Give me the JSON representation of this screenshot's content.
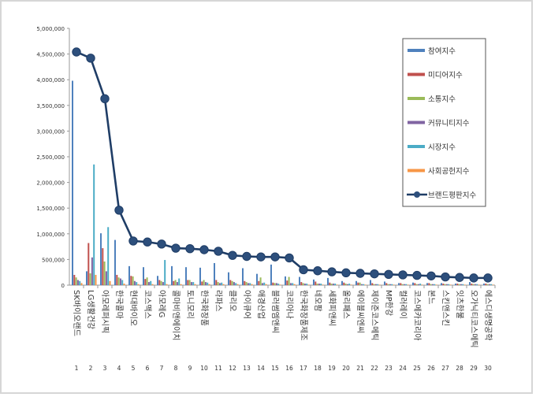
{
  "chart_data": {
    "type": "bar",
    "title": "",
    "xlabel": "",
    "ylabel": "",
    "ylim": [
      0,
      5000000
    ],
    "y_ticks": [
      "0",
      "500,000",
      "1,000,000",
      "1,500,000",
      "2,000,000",
      "2,500,000",
      "3,000,000",
      "3,500,000",
      "4,000,000",
      "4,500,000",
      "5,000,000"
    ],
    "grid": false,
    "legend_position": "top-right",
    "categories": [
      "SK바이오랜드",
      "LG생활건강",
      "아모레퍼시픽",
      "한국콜마",
      "현대바이오",
      "코스맥스",
      "아모레G",
      "콜마비앤에이치",
      "토니모리",
      "한국화장품",
      "라파스",
      "클리오",
      "아이큐어",
      "애경산업",
      "블러썸엠앤씨",
      "코리아나",
      "한국화장품제조",
      "네오팜",
      "세화피앤씨",
      "올리패스",
      "에이블씨엔씨",
      "제이준코스메틱",
      "MP한강",
      "컬러레이",
      "코스메카코리아",
      "본느",
      "스킨앤스킨",
      "잇츠한불",
      "오가닉티코스메틱",
      "에스디생명공학"
    ],
    "ranks": [
      "1",
      "2",
      "3",
      "4",
      "5",
      "6",
      "7",
      "8",
      "9",
      "10",
      "11",
      "12",
      "13",
      "14",
      "15",
      "16",
      "17",
      "18",
      "19",
      "20",
      "21",
      "22",
      "23",
      "24",
      "25",
      "26",
      "27",
      "28",
      "29",
      "30"
    ],
    "series": [
      {
        "name": "참여지수",
        "type": "bar",
        "color": "#4f81bd",
        "values": [
          3980000,
          270000,
          1010000,
          880000,
          370000,
          350000,
          180000,
          370000,
          350000,
          340000,
          430000,
          250000,
          330000,
          220000,
          400000,
          170000,
          160000,
          110000,
          140000,
          80000,
          80000,
          100000,
          70000,
          40000,
          50000,
          40000,
          40000,
          30000,
          60000,
          30000
        ]
      },
      {
        "name": "미디어지수",
        "type": "bar",
        "color": "#c0504d",
        "values": [
          200000,
          820000,
          720000,
          200000,
          180000,
          120000,
          100000,
          80000,
          100000,
          70000,
          100000,
          100000,
          80000,
          80000,
          50000,
          90000,
          60000,
          70000,
          50000,
          50000,
          50000,
          40000,
          40000,
          40000,
          40000,
          40000,
          30000,
          30000,
          30000,
          30000
        ]
      },
      {
        "name": "소통지수",
        "type": "bar",
        "color": "#9bbb59",
        "values": [
          150000,
          230000,
          460000,
          150000,
          170000,
          150000,
          80000,
          100000,
          100000,
          100000,
          60000,
          80000,
          60000,
          150000,
          40000,
          160000,
          40000,
          30000,
          30000,
          30000,
          50000,
          20000,
          20000,
          20000,
          20000,
          20000,
          20000,
          20000,
          20000,
          20000
        ]
      },
      {
        "name": "커뮤니티지수",
        "type": "bar",
        "color": "#8064a2",
        "values": [
          100000,
          540000,
          270000,
          130000,
          80000,
          60000,
          60000,
          60000,
          60000,
          60000,
          40000,
          60000,
          40000,
          40000,
          40000,
          40000,
          30000,
          30000,
          30000,
          20000,
          20000,
          20000,
          20000,
          20000,
          20000,
          20000,
          20000,
          20000,
          20000,
          20000
        ]
      },
      {
        "name": "시장지수",
        "type": "bar",
        "color": "#4bacc6",
        "values": [
          80000,
          2350000,
          1130000,
          100000,
          60000,
          80000,
          490000,
          130000,
          60000,
          50000,
          50000,
          40000,
          40000,
          50000,
          30000,
          40000,
          30000,
          30000,
          30000,
          30000,
          20000,
          20000,
          20000,
          20000,
          30000,
          20000,
          20000,
          20000,
          20000,
          20000
        ]
      },
      {
        "name": "사회공헌지수",
        "type": "bar",
        "color": "#f79646",
        "values": [
          40000,
          200000,
          80000,
          30000,
          20000,
          20000,
          20000,
          20000,
          20000,
          20000,
          20000,
          20000,
          20000,
          20000,
          10000,
          20000,
          10000,
          10000,
          10000,
          10000,
          10000,
          10000,
          10000,
          10000,
          10000,
          10000,
          10000,
          10000,
          10000,
          10000
        ]
      },
      {
        "name": "브랜드평판지수",
        "type": "line",
        "color": "#1f3d66",
        "values": [
          4540000,
          4420000,
          3630000,
          1460000,
          860000,
          840000,
          800000,
          720000,
          710000,
          690000,
          660000,
          580000,
          560000,
          550000,
          550000,
          530000,
          300000,
          280000,
          260000,
          240000,
          230000,
          220000,
          210000,
          200000,
          190000,
          180000,
          160000,
          150000,
          140000,
          140000
        ]
      }
    ]
  }
}
